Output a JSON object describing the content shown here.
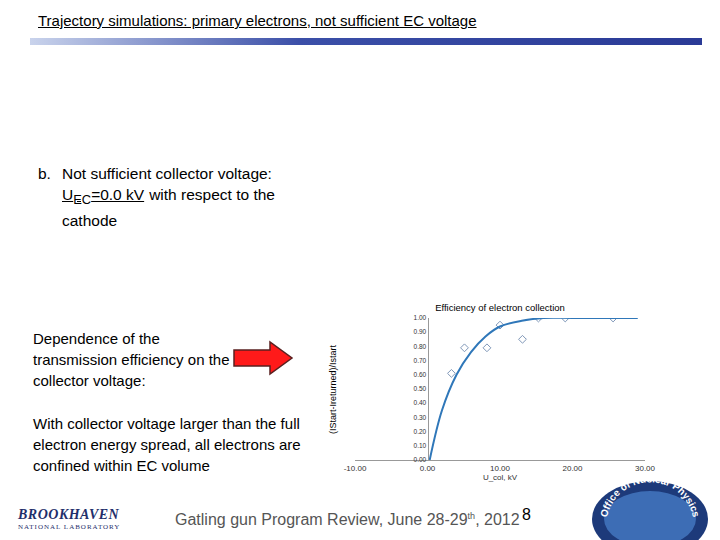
{
  "slide": {
    "title": "Trajectory simulations: primary electrons, not sufficient EC voltage",
    "subtitle": {
      "label": "b.",
      "line1": "Not sufficient collector voltage:",
      "var": "U",
      "var_sub": "EC",
      "value_text": "=0.0 kV",
      "rest": "with respect to the",
      "line3": "cathode"
    },
    "left_text_1": "Dependence of the transmission efficiency on the collector voltage:",
    "left_text_2": "With collector voltage larger than the full electron energy spread, all electrons are confined within EC volume",
    "logo": [
      "BROOKHAVEN",
      "NATIONAL LABORATORY"
    ],
    "footer": {
      "main": "Gatling gun Program Review, June 28-29",
      "sup": "th",
      "end": ", 2012"
    },
    "page_number": "8",
    "office_logo": "Office of Nuclear Physics"
  },
  "chart_data": {
    "type": "scatter",
    "title": "Efficiency of electron collection",
    "x_label": "U_col, kV",
    "y_label": "(IStart-Ireturned)/Istart",
    "xlim": [
      -10,
      30
    ],
    "xticks": [
      {
        "value": -10,
        "label": "-10.00"
      },
      {
        "value": 0,
        "label": "0.00"
      },
      {
        "value": 10,
        "label": "10.00"
      },
      {
        "value": 20,
        "label": "20.00"
      },
      {
        "value": 30,
        "label": "30.00"
      }
    ],
    "ylim": [
      0,
      1
    ],
    "yticks": [
      {
        "value": 0,
        "label": "0.00"
      },
      {
        "value": 0.1,
        "label": "0.10"
      },
      {
        "value": 0.2,
        "label": "0.20"
      },
      {
        "value": 0.3,
        "label": "0.30"
      },
      {
        "value": 0.4,
        "label": "0.40"
      },
      {
        "value": 0.5,
        "label": "0.50"
      },
      {
        "value": 0.6,
        "label": "0.60"
      },
      {
        "value": 0.7,
        "label": "0.70"
      },
      {
        "value": 0.8,
        "label": "0.80"
      },
      {
        "value": 0.9,
        "label": "0.90"
      },
      {
        "value": 1,
        "label": "1.00"
      }
    ],
    "grid": false,
    "series": [
      {
        "type": "scatter",
        "color": "#7f97b8",
        "marker": "diamond-open",
        "line_style": "none",
        "x": [
          3.3,
          5.1,
          8.2,
          10,
          13.1,
          15.3,
          19,
          25.6
        ],
        "values": [
          0.61,
          0.79,
          0.79,
          0.95,
          0.85,
          1.0,
          1.0,
          1.0
        ]
      },
      {
        "type": "line",
        "color": "#2f77b9",
        "line_style": "solid",
        "x": [
          0.3,
          2,
          4,
          6,
          8,
          10,
          13,
          16,
          20,
          25,
          29
        ],
        "values": [
          0.0,
          0.35,
          0.6,
          0.76,
          0.87,
          0.94,
          0.98,
          1.0,
          1.0,
          1.0,
          1.0
        ]
      }
    ]
  }
}
